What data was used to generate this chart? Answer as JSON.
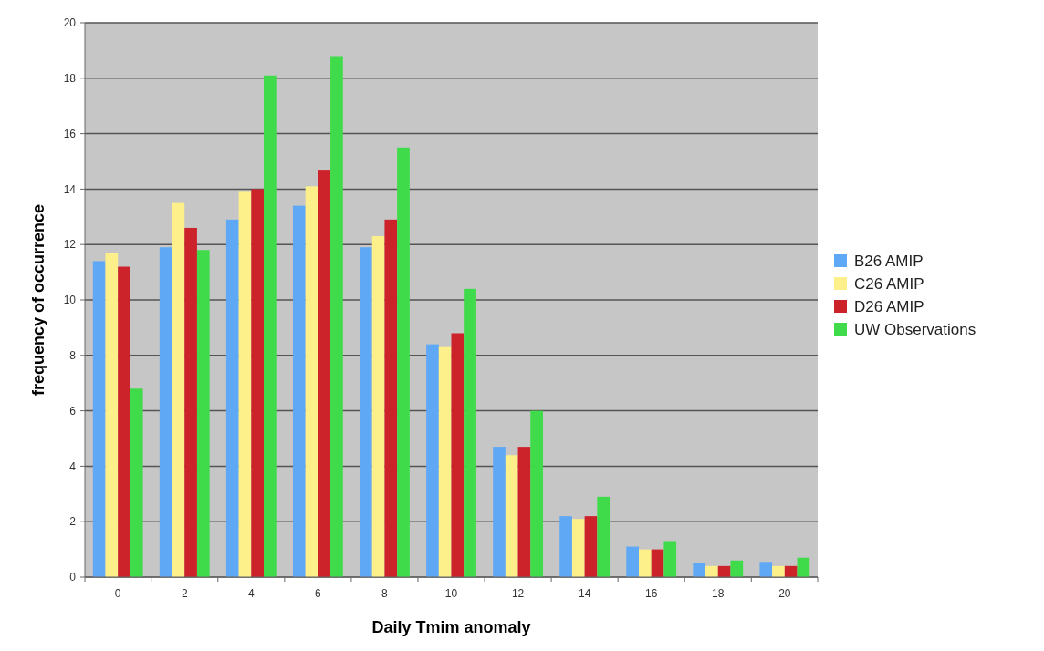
{
  "chart_data": {
    "type": "bar",
    "xlabel": "Daily Tmim anomaly",
    "ylabel": "frequency of occurrence",
    "categories": [
      "0",
      "2",
      "4",
      "6",
      "8",
      "10",
      "12",
      "14",
      "16",
      "18",
      "20"
    ],
    "series": [
      {
        "name": "B26 AMIP",
        "color": "#5fa8f5",
        "values": [
          11.4,
          11.9,
          12.9,
          13.4,
          11.9,
          8.4,
          4.7,
          2.2,
          1.1,
          0.5,
          0.55
        ]
      },
      {
        "name": "C26 AMIP",
        "color": "#fdf08a",
        "values": [
          11.7,
          13.5,
          13.9,
          14.1,
          12.3,
          8.3,
          4.4,
          2.1,
          1.0,
          0.4,
          0.4
        ]
      },
      {
        "name": "D26 AMIP",
        "color": "#cc2229",
        "values": [
          11.2,
          12.6,
          14.0,
          14.7,
          12.9,
          8.8,
          4.7,
          2.2,
          1.0,
          0.4,
          0.4
        ]
      },
      {
        "name": "UW Observations",
        "color": "#3fdb4a",
        "values": [
          6.8,
          11.8,
          18.1,
          18.8,
          15.5,
          10.4,
          6.0,
          2.9,
          1.3,
          0.6,
          0.7
        ]
      }
    ],
    "ylim": [
      0,
      20
    ],
    "yticks": [
      0,
      2,
      4,
      6,
      8,
      10,
      12,
      14,
      16,
      18,
      20
    ],
    "grid": "y",
    "legend": "right"
  }
}
